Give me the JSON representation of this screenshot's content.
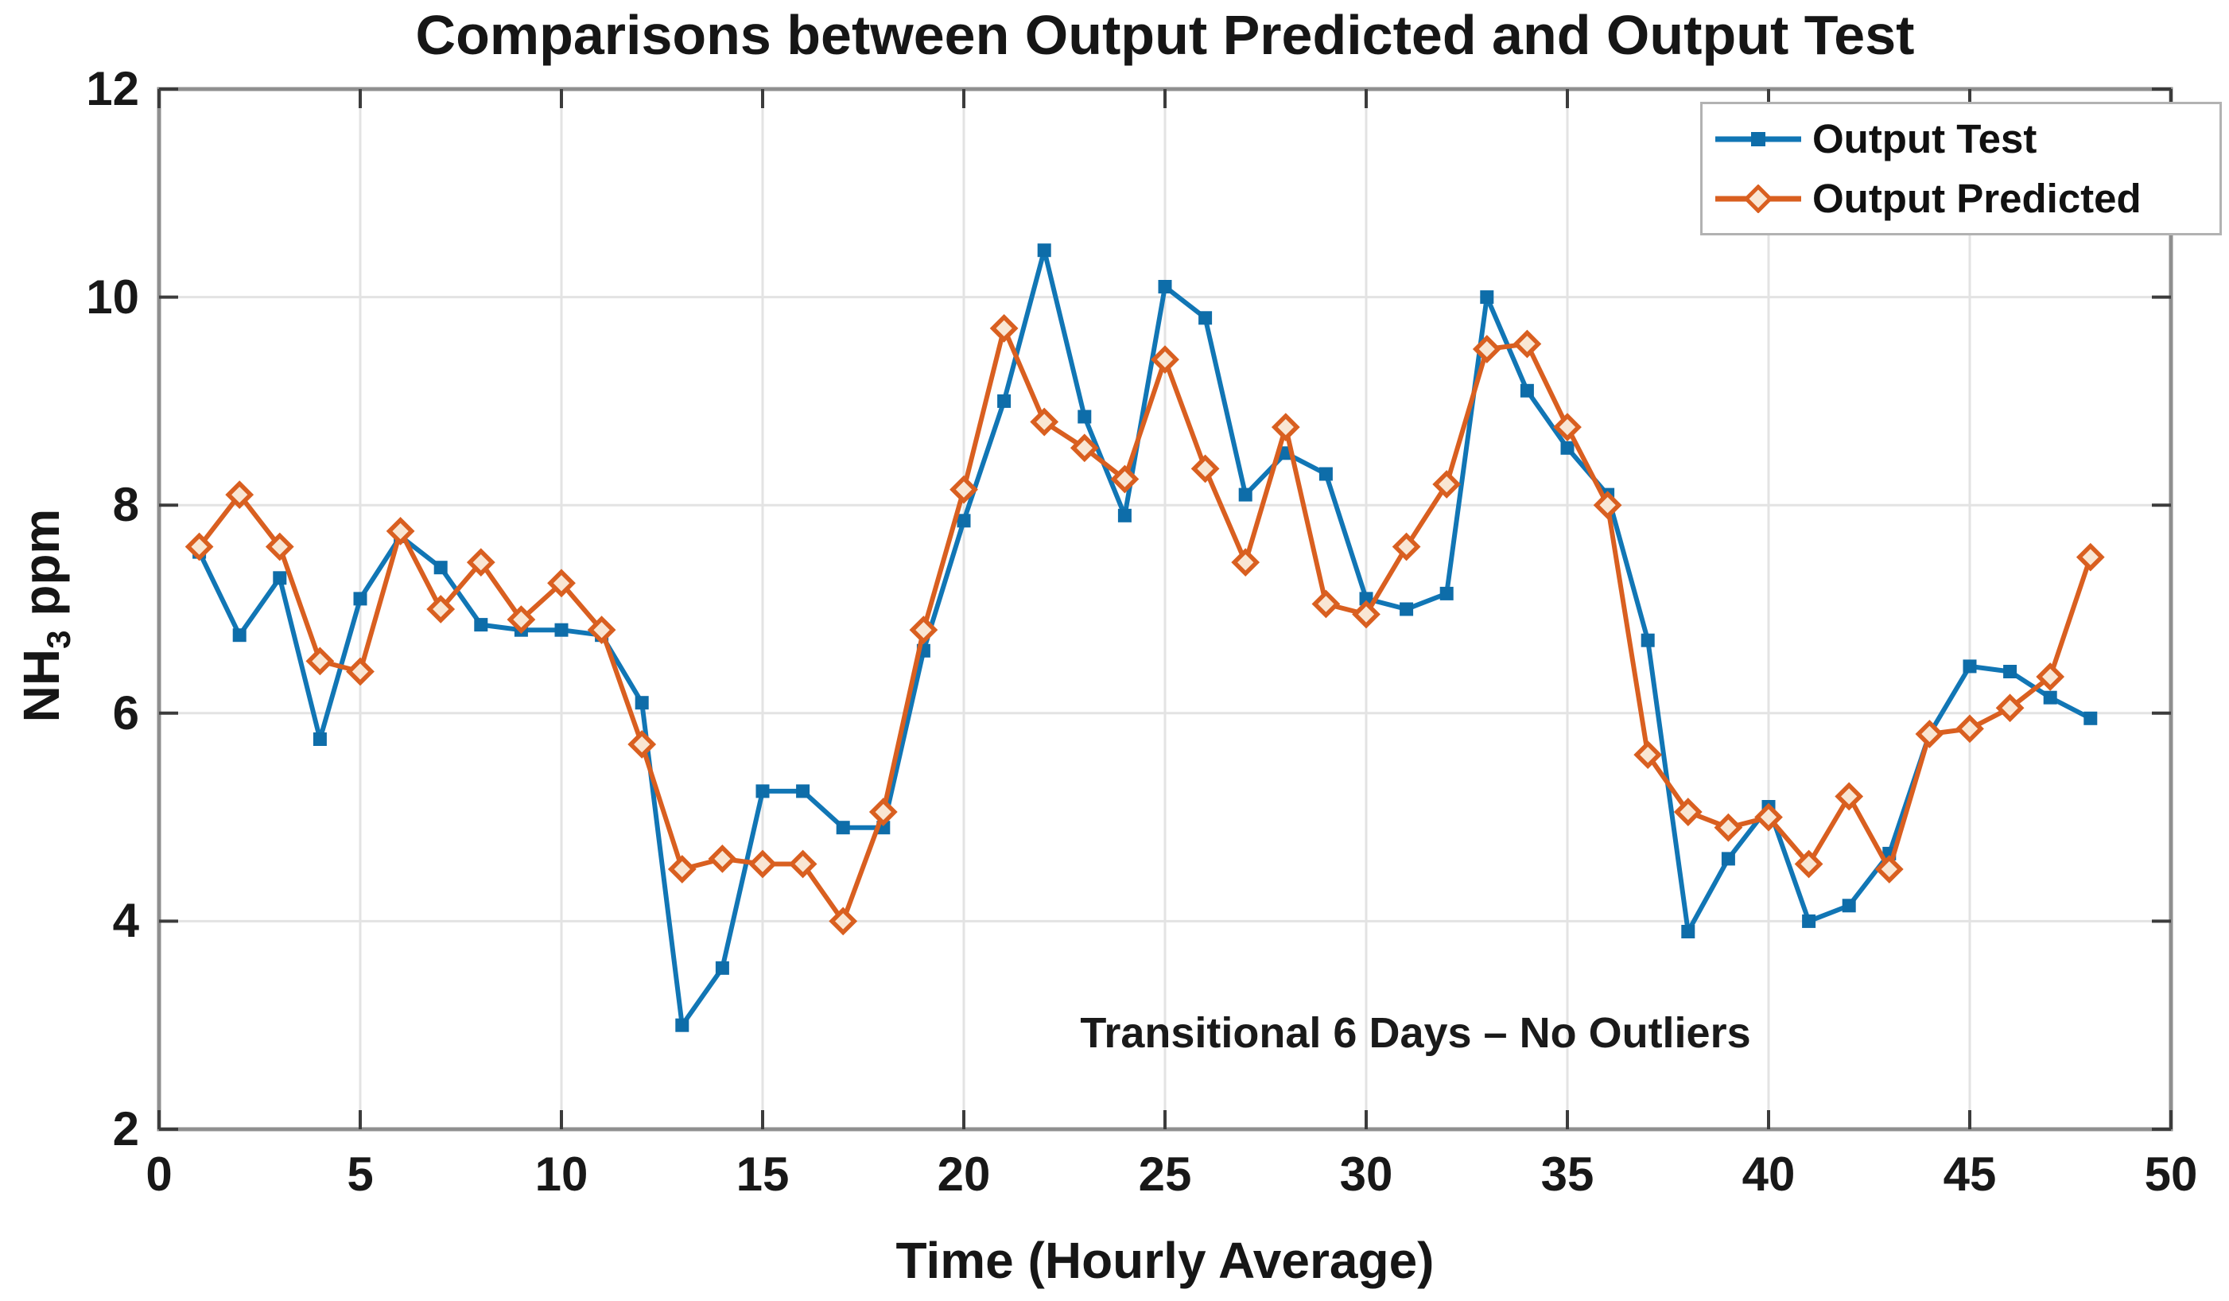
{
  "chart_data": {
    "type": "line",
    "title": "Comparisons between Output Predicted and Output Test",
    "xlabel": "Time (Hourly Average)",
    "ylabel": {
      "prefix": "NH",
      "sub": "3",
      "suffix": " ppm"
    },
    "annotation": "Transitional 6 Days – No Outliers",
    "xlim": [
      0,
      50
    ],
    "ylim": [
      2,
      12
    ],
    "xticks": [
      0,
      5,
      10,
      15,
      20,
      25,
      30,
      35,
      40,
      45,
      50
    ],
    "yticks": [
      2,
      4,
      6,
      8,
      10,
      12
    ],
    "grid": true,
    "legend_position": "top-right",
    "x": [
      1,
      2,
      3,
      4,
      5,
      6,
      7,
      8,
      9,
      10,
      11,
      12,
      13,
      14,
      15,
      16,
      17,
      18,
      19,
      20,
      21,
      22,
      23,
      24,
      25,
      26,
      27,
      28,
      29,
      30,
      31,
      32,
      33,
      34,
      35,
      36,
      37,
      38,
      39,
      40,
      41,
      42,
      43,
      44,
      45,
      46,
      47,
      48
    ],
    "series": [
      {
        "name": "Output Test",
        "color": "#1176b5",
        "marker": "square",
        "marker_fill": "#0e6da9",
        "values": [
          7.55,
          6.75,
          7.3,
          5.75,
          7.1,
          7.7,
          7.4,
          6.85,
          6.8,
          6.8,
          6.75,
          6.1,
          3.0,
          3.55,
          5.25,
          5.25,
          4.9,
          4.9,
          6.6,
          7.85,
          9.0,
          10.45,
          8.85,
          7.9,
          10.1,
          9.8,
          8.1,
          8.5,
          8.3,
          7.1,
          7.0,
          7.15,
          10.0,
          9.1,
          8.55,
          8.1,
          6.7,
          3.9,
          4.6,
          5.1,
          4.0,
          4.15,
          4.65,
          5.8,
          6.45,
          6.4,
          6.15,
          5.95
        ]
      },
      {
        "name": "Output Predicted",
        "color": "#d95f20",
        "marker": "diamond",
        "marker_fill": "#f9e6d3",
        "values": [
          7.6,
          8.1,
          7.6,
          6.5,
          6.4,
          7.75,
          7.0,
          7.45,
          6.9,
          7.25,
          6.8,
          5.7,
          4.5,
          4.6,
          4.55,
          4.55,
          4.0,
          5.05,
          6.8,
          8.15,
          9.7,
          8.8,
          8.55,
          8.25,
          9.4,
          8.35,
          7.45,
          8.75,
          7.05,
          6.95,
          7.6,
          8.2,
          9.5,
          9.55,
          8.75,
          8.0,
          5.6,
          5.05,
          4.9,
          5.0,
          4.55,
          5.2,
          4.5,
          5.8,
          5.85,
          6.05,
          6.35,
          7.5
        ]
      }
    ],
    "colors": {
      "grid": "#e3e3e3",
      "box": "#8f8f8f",
      "tick": "#3c3c3c",
      "text": "#161616",
      "background": "#ffffff"
    }
  }
}
